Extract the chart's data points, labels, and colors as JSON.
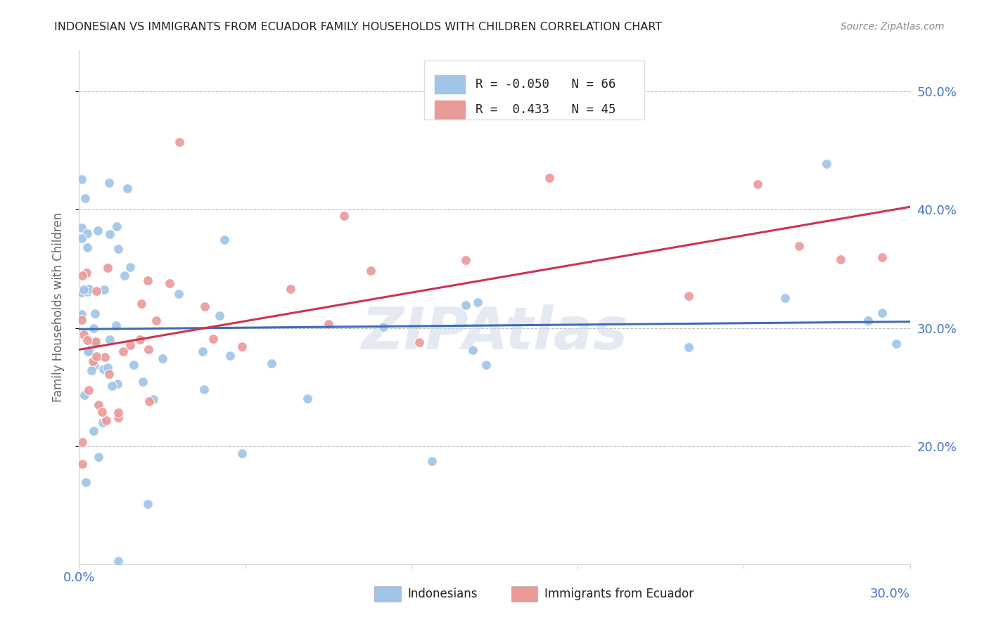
{
  "title": "INDONESIAN VS IMMIGRANTS FROM ECUADOR FAMILY HOUSEHOLDS WITH CHILDREN CORRELATION CHART",
  "source": "Source: ZipAtlas.com",
  "ylabel": "Family Households with Children",
  "ytick_values": [
    0.2,
    0.3,
    0.4,
    0.5
  ],
  "ytick_labels": [
    "20.0%",
    "30.0%",
    "40.0%",
    "50.0%"
  ],
  "xlim": [
    0.0,
    0.3
  ],
  "ylim": [
    0.1,
    0.535
  ],
  "legend_blue_r": "-0.050",
  "legend_blue_n": "66",
  "legend_pink_r": " 0.433",
  "legend_pink_n": "45",
  "blue_scatter_color": "#9fc5e8",
  "pink_scatter_color": "#ea9999",
  "line_blue_color": "#3d6db5",
  "line_pink_color": "#cc3355",
  "grid_color": "#c0c0c0",
  "title_color": "#222222",
  "axis_label_color": "#4472c4",
  "ylabel_color": "#666666",
  "source_color": "#888888",
  "watermark_text": "ZIPAtlas",
  "watermark_color": "#d0d8e8",
  "legend_box_color": "#dddddd",
  "bottom_legend_label1": "Indonesians",
  "bottom_legend_label2": "Immigrants from Ecuador"
}
